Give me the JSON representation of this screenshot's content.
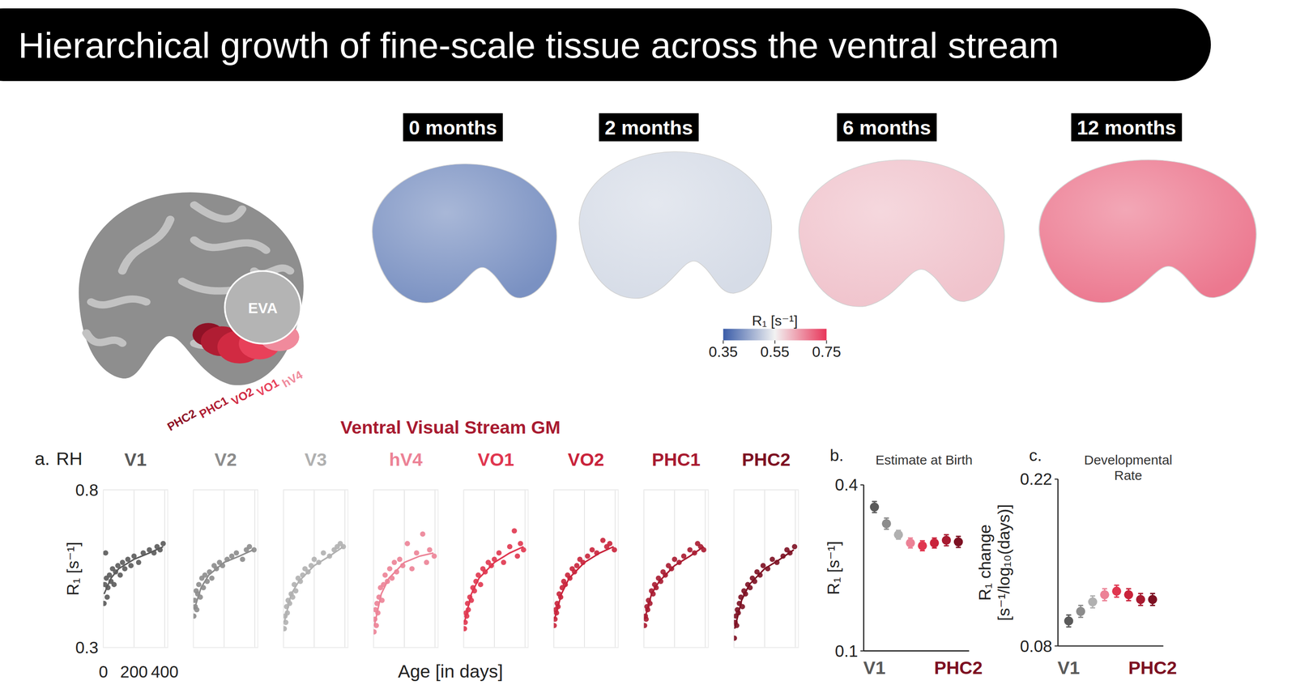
{
  "title": "Hierarchical growth of fine-scale tissue across the ventral stream",
  "atlas": {
    "regions": [
      {
        "name": "EVA",
        "color": "#b4b4b4"
      },
      {
        "name": "hV4",
        "color": "#f08a9c"
      },
      {
        "name": "VO1",
        "color": "#e8415a"
      },
      {
        "name": "VO2",
        "color": "#d12a42"
      },
      {
        "name": "PHC1",
        "color": "#b01d33"
      },
      {
        "name": "PHC2",
        "color": "#8e1226"
      }
    ]
  },
  "maps": [
    {
      "label": "0 months",
      "mean_r1": 0.42
    },
    {
      "label": "2 months",
      "mean_r1": 0.52
    },
    {
      "label": "6 months",
      "mean_r1": 0.6
    },
    {
      "label": "12 months",
      "mean_r1": 0.68
    }
  ],
  "colorbar": {
    "label": "R₁ [s⁻¹]",
    "range": [
      0.35,
      0.75
    ],
    "ticks": [
      0.35,
      0.55,
      0.75
    ],
    "colors": [
      "#3a5ca8",
      "#f2f2f2",
      "#e8365a"
    ]
  },
  "chart_data": [
    {
      "type": "scatter",
      "label": "a.",
      "hemisphere": "RH",
      "title": "Ventral Visual Stream GM",
      "x_label": "Age [in days]",
      "y_label": "R₁ [s⁻¹]",
      "xlim": [
        0,
        420
      ],
      "xticks": [
        0,
        200,
        400
      ],
      "ylim": [
        0.3,
        0.8
      ],
      "yticks": [
        0.3,
        0.8
      ],
      "grid": true,
      "series": [
        {
          "name": "V1",
          "color": "#5a5a5a",
          "x": [
            5,
            10,
            15,
            20,
            25,
            30,
            40,
            50,
            60,
            70,
            80,
            95,
            110,
            125,
            140,
            160,
            180,
            200,
            230,
            260,
            300,
            330,
            350,
            370,
            390
          ],
          "values": [
            0.44,
            0.5,
            0.6,
            0.52,
            0.46,
            0.49,
            0.53,
            0.51,
            0.55,
            0.5,
            0.54,
            0.56,
            0.53,
            0.57,
            0.55,
            0.58,
            0.56,
            0.59,
            0.57,
            0.6,
            0.61,
            0.6,
            0.62,
            0.61,
            0.63
          ],
          "fit": {
            "x": [
              5,
              50,
              100,
              200,
              300,
              390
            ],
            "values": [
              0.47,
              0.52,
              0.55,
              0.58,
              0.6,
              0.62
            ]
          }
        },
        {
          "name": "V2",
          "color": "#8c8c8c",
          "x": [
            3,
            8,
            12,
            18,
            22,
            28,
            35,
            45,
            55,
            65,
            75,
            90,
            105,
            120,
            135,
            150,
            170,
            190,
            220,
            250,
            280,
            320,
            345,
            365,
            395
          ],
          "values": [
            0.4,
            0.45,
            0.43,
            0.48,
            0.42,
            0.47,
            0.5,
            0.46,
            0.52,
            0.49,
            0.53,
            0.51,
            0.54,
            0.52,
            0.56,
            0.55,
            0.57,
            0.56,
            0.58,
            0.59,
            0.6,
            0.58,
            0.61,
            0.62,
            0.61
          ],
          "fit": {
            "x": [
              5,
              50,
              100,
              200,
              300,
              390
            ],
            "values": [
              0.42,
              0.49,
              0.53,
              0.57,
              0.59,
              0.61
            ]
          }
        },
        {
          "name": "V3",
          "color": "#b0b0b0",
          "x": [
            5,
            10,
            15,
            20,
            25,
            30,
            40,
            50,
            60,
            70,
            80,
            95,
            110,
            125,
            140,
            160,
            180,
            200,
            230,
            260,
            300,
            330,
            350,
            370,
            390
          ],
          "values": [
            0.36,
            0.4,
            0.38,
            0.43,
            0.41,
            0.45,
            0.44,
            0.47,
            0.46,
            0.5,
            0.48,
            0.52,
            0.51,
            0.53,
            0.55,
            0.54,
            0.56,
            0.58,
            0.57,
            0.6,
            0.59,
            0.61,
            0.62,
            0.63,
            0.62
          ],
          "fit": {
            "x": [
              5,
              50,
              100,
              200,
              300,
              390
            ],
            "values": [
              0.38,
              0.47,
              0.51,
              0.56,
              0.59,
              0.62
            ]
          }
        },
        {
          "name": "hV4",
          "color": "#ec8296",
          "x": [
            3,
            8,
            12,
            18,
            22,
            28,
            35,
            45,
            55,
            65,
            75,
            90,
            105,
            120,
            135,
            150,
            170,
            190,
            220,
            250,
            280,
            320,
            345,
            365,
            395
          ],
          "values": [
            0.35,
            0.39,
            0.42,
            0.37,
            0.44,
            0.41,
            0.46,
            0.49,
            0.45,
            0.5,
            0.53,
            0.51,
            0.55,
            0.52,
            0.57,
            0.54,
            0.58,
            0.56,
            0.63,
            0.55,
            0.6,
            0.66,
            0.57,
            0.61,
            0.59
          ],
          "fit": {
            "x": [
              5,
              50,
              100,
              200,
              300,
              390
            ],
            "values": [
              0.37,
              0.47,
              0.52,
              0.57,
              0.59,
              0.6
            ]
          }
        },
        {
          "name": "VO1",
          "color": "#e0364f",
          "x": [
            5,
            10,
            15,
            20,
            25,
            30,
            40,
            50,
            60,
            70,
            80,
            95,
            110,
            125,
            140,
            160,
            180,
            200,
            230,
            260,
            300,
            330,
            350,
            370,
            390
          ],
          "values": [
            0.36,
            0.38,
            0.41,
            0.4,
            0.44,
            0.42,
            0.46,
            0.45,
            0.49,
            0.48,
            0.51,
            0.53,
            0.5,
            0.55,
            0.54,
            0.57,
            0.56,
            0.58,
            0.6,
            0.57,
            0.62,
            0.67,
            0.59,
            0.63,
            0.61
          ],
          "fit": {
            "x": [
              5,
              50,
              100,
              200,
              300,
              390
            ],
            "values": [
              0.38,
              0.47,
              0.52,
              0.57,
              0.6,
              0.62
            ]
          }
        },
        {
          "name": "VO2",
          "color": "#c9233b",
          "x": [
            3,
            8,
            12,
            18,
            22,
            28,
            35,
            45,
            55,
            65,
            75,
            90,
            105,
            120,
            135,
            150,
            170,
            190,
            220,
            250,
            280,
            320,
            345,
            365,
            395
          ],
          "values": [
            0.37,
            0.39,
            0.42,
            0.41,
            0.44,
            0.43,
            0.47,
            0.46,
            0.49,
            0.51,
            0.5,
            0.53,
            0.52,
            0.55,
            0.54,
            0.56,
            0.58,
            0.57,
            0.59,
            0.61,
            0.6,
            0.64,
            0.62,
            0.63,
            0.61
          ],
          "fit": {
            "x": [
              5,
              50,
              100,
              200,
              300,
              390
            ],
            "values": [
              0.39,
              0.47,
              0.52,
              0.57,
              0.6,
              0.62
            ]
          }
        },
        {
          "name": "PHC1",
          "color": "#a81a30",
          "x": [
            5,
            10,
            15,
            20,
            25,
            30,
            40,
            50,
            60,
            70,
            80,
            95,
            110,
            125,
            140,
            160,
            180,
            200,
            230,
            260,
            300,
            330,
            350,
            370,
            390
          ],
          "values": [
            0.37,
            0.4,
            0.39,
            0.43,
            0.42,
            0.45,
            0.44,
            0.48,
            0.47,
            0.5,
            0.49,
            0.52,
            0.51,
            0.54,
            0.53,
            0.56,
            0.55,
            0.58,
            0.57,
            0.59,
            0.61,
            0.6,
            0.63,
            0.62,
            0.61
          ],
          "fit": {
            "x": [
              5,
              50,
              100,
              200,
              300,
              390
            ],
            "values": [
              0.39,
              0.47,
              0.51,
              0.56,
              0.59,
              0.62
            ]
          }
        },
        {
          "name": "PHC2",
          "color": "#7d1022",
          "x": [
            3,
            8,
            12,
            18,
            22,
            28,
            35,
            45,
            55,
            65,
            75,
            90,
            105,
            120,
            135,
            150,
            170,
            190,
            220,
            250,
            280,
            320,
            345,
            365,
            395
          ],
          "values": [
            0.33,
            0.38,
            0.4,
            0.37,
            0.42,
            0.41,
            0.44,
            0.46,
            0.43,
            0.48,
            0.47,
            0.5,
            0.49,
            0.52,
            0.51,
            0.54,
            0.53,
            0.56,
            0.55,
            0.58,
            0.57,
            0.59,
            0.61,
            0.6,
            0.62
          ],
          "fit": {
            "x": [
              5,
              50,
              100,
              200,
              300,
              390
            ],
            "values": [
              0.36,
              0.45,
              0.5,
              0.55,
              0.58,
              0.61
            ]
          }
        }
      ]
    },
    {
      "type": "scatter",
      "label": "b.",
      "title": "Estimate at Birth",
      "y_label": "R₁ [s⁻¹]",
      "ylim": [
        0.1,
        0.4
      ],
      "yticks": [
        0.1,
        0.4
      ],
      "categories": [
        "V1",
        null,
        null,
        null,
        null,
        null,
        null,
        "PHC2"
      ],
      "values": [
        0.36,
        0.33,
        0.31,
        0.295,
        0.29,
        0.295,
        0.3,
        0.297
      ],
      "errors": [
        0.01,
        0.01,
        0.008,
        0.009,
        0.009,
        0.009,
        0.01,
        0.01
      ],
      "colors": [
        "#5a5a5a",
        "#8c8c8c",
        "#b0b0b0",
        "#ec8296",
        "#e0364f",
        "#c9233b",
        "#a81a30",
        "#7d1022"
      ]
    },
    {
      "type": "scatter",
      "label": "c.",
      "title": "Developmental Rate",
      "y_label": "R₁ change [s⁻¹/log₁₀(days)]",
      "ylim": [
        0.08,
        0.22
      ],
      "yticks": [
        0.08,
        0.22
      ],
      "categories": [
        "V1",
        null,
        null,
        null,
        null,
        null,
        null,
        "PHC2"
      ],
      "values": [
        0.101,
        0.109,
        0.117,
        0.123,
        0.126,
        0.123,
        0.119,
        0.119
      ],
      "errors": [
        0.005,
        0.005,
        0.005,
        0.005,
        0.005,
        0.005,
        0.005,
        0.005
      ],
      "colors": [
        "#5a5a5a",
        "#8c8c8c",
        "#b0b0b0",
        "#ec8296",
        "#e0364f",
        "#c9233b",
        "#a81a30",
        "#7d1022"
      ]
    }
  ]
}
